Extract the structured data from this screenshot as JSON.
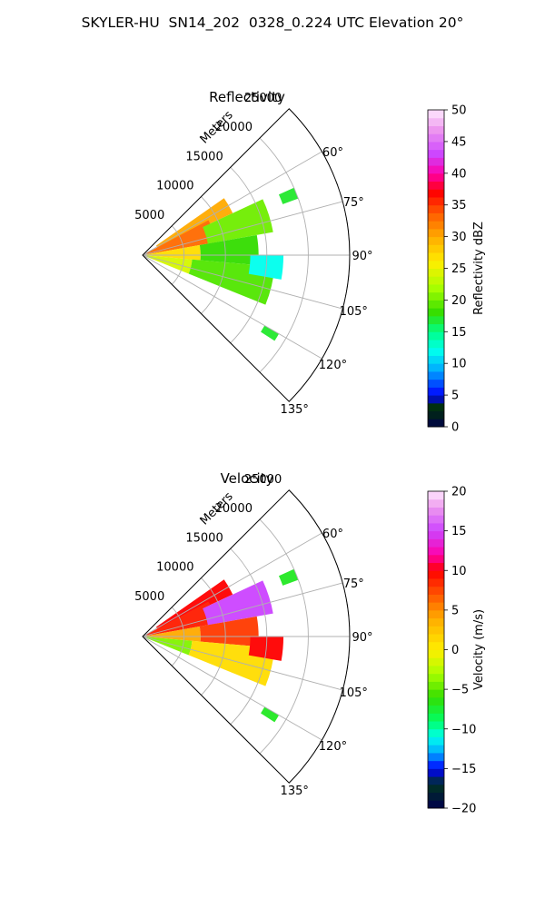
{
  "figure": {
    "title": "SKYLER-HU  SN14_202  0328_0.224 UTC Elevation 20°"
  },
  "chart_data": [
    {
      "type": "polar-sector",
      "title": "Reflectivity",
      "r_label": "Meters",
      "r_ticks": [
        5000,
        10000,
        15000,
        20000,
        25000
      ],
      "theta_ticks": [
        "60°",
        "75°",
        "90°",
        "105°",
        "120°",
        "135°"
      ],
      "theta_range_deg": [
        45,
        135
      ],
      "r_range": [
        0,
        25000
      ],
      "grid": true,
      "colorbar": {
        "label": "Reflectivity dBZ",
        "min": 0,
        "max": 50,
        "ticks": [
          "0",
          "5",
          "10",
          "15",
          "20",
          "25",
          "30",
          "35",
          "40",
          "45",
          "50"
        ]
      },
      "echo_regions": [
        {
          "theta": [
            55,
            65
          ],
          "r": [
            2000,
            12000
          ],
          "value": 30
        },
        {
          "theta": [
            62,
            80
          ],
          "r": [
            500,
            9000
          ],
          "value": 33
        },
        {
          "theta": [
            65,
            80
          ],
          "r": [
            8000,
            16000
          ],
          "value": 20
        },
        {
          "theta": [
            80,
            95
          ],
          "r": [
            500,
            7000
          ],
          "value": 27
        },
        {
          "theta": [
            80,
            95
          ],
          "r": [
            7000,
            14000
          ],
          "value": 18
        },
        {
          "theta": [
            95,
            112
          ],
          "r": [
            500,
            6000
          ],
          "value": 24
        },
        {
          "theta": [
            95,
            112
          ],
          "r": [
            6000,
            16000
          ],
          "value": 19
        },
        {
          "theta": [
            90,
            100
          ],
          "r": [
            13000,
            17000
          ],
          "value": 12
        },
        {
          "theta": [
            66,
            70
          ],
          "r": [
            18000,
            20000
          ],
          "value": 17
        },
        {
          "theta": [
            120,
            123
          ],
          "r": [
            17000,
            19000
          ],
          "value": 17
        }
      ]
    },
    {
      "type": "polar-sector",
      "title": "Velocity",
      "r_label": "Meters",
      "r_ticks": [
        5000,
        10000,
        15000,
        20000,
        25000
      ],
      "theta_ticks": [
        "60°",
        "75°",
        "90°",
        "105°",
        "120°",
        "135°"
      ],
      "theta_range_deg": [
        45,
        135
      ],
      "r_range": [
        0,
        25000
      ],
      "grid": true,
      "colorbar": {
        "label": "Velocity (m/s)",
        "min": -20,
        "max": 20,
        "ticks": [
          "−20",
          "−15",
          "−10",
          "−5",
          "0",
          "5",
          "10",
          "15",
          "20"
        ]
      },
      "echo_regions": [
        {
          "theta": [
            55,
            65
          ],
          "r": [
            2000,
            12000
          ],
          "value": 10
        },
        {
          "theta": [
            62,
            80
          ],
          "r": [
            500,
            9000
          ],
          "value": 9
        },
        {
          "theta": [
            65,
            80
          ],
          "r": [
            8000,
            16000
          ],
          "value": 15
        },
        {
          "theta": [
            80,
            95
          ],
          "r": [
            500,
            7000
          ],
          "value": 4
        },
        {
          "theta": [
            80,
            95
          ],
          "r": [
            7000,
            14000
          ],
          "value": 8
        },
        {
          "theta": [
            95,
            112
          ],
          "r": [
            500,
            6000
          ],
          "value": -4
        },
        {
          "theta": [
            95,
            112
          ],
          "r": [
            6000,
            16000
          ],
          "value": 1
        },
        {
          "theta": [
            90,
            100
          ],
          "r": [
            13000,
            17000
          ],
          "value": 10
        },
        {
          "theta": [
            66,
            70
          ],
          "r": [
            18000,
            20000
          ],
          "value": -7
        },
        {
          "theta": [
            120,
            123
          ],
          "r": [
            17000,
            19000
          ],
          "value": -7
        }
      ]
    }
  ]
}
